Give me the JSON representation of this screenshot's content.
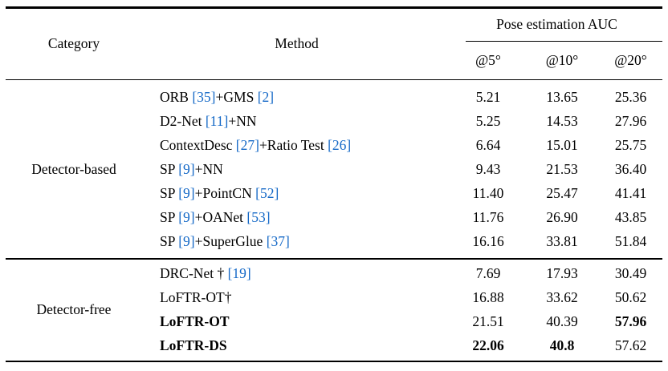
{
  "table": {
    "citation_color": "#1569c7",
    "rule_color": "#000000",
    "header": {
      "category": "Category",
      "method": "Method",
      "group": "Pose estimation AUC",
      "subcols": [
        "@5°",
        "@10°",
        "@20°"
      ]
    },
    "sections": [
      {
        "category": "Detector-based",
        "rows": [
          {
            "parts": [
              {
                "t": "ORB ",
                "c": false
              },
              {
                "t": "[35]",
                "c": true
              },
              {
                "t": "+GMS ",
                "c": false
              },
              {
                "t": "[2]",
                "c": true
              }
            ],
            "vals": [
              {
                "t": "5.21",
                "b": false
              },
              {
                "t": "13.65",
                "b": false
              },
              {
                "t": "25.36",
                "b": false
              }
            ]
          },
          {
            "parts": [
              {
                "t": "D2-Net ",
                "c": false
              },
              {
                "t": "[11]",
                "c": true
              },
              {
                "t": "+NN",
                "c": false
              }
            ],
            "vals": [
              {
                "t": "5.25",
                "b": false
              },
              {
                "t": "14.53",
                "b": false
              },
              {
                "t": "27.96",
                "b": false
              }
            ]
          },
          {
            "parts": [
              {
                "t": "ContextDesc ",
                "c": false
              },
              {
                "t": "[27]",
                "c": true
              },
              {
                "t": "+Ratio Test ",
                "c": false
              },
              {
                "t": "[26]",
                "c": true
              }
            ],
            "vals": [
              {
                "t": "6.64",
                "b": false
              },
              {
                "t": "15.01",
                "b": false
              },
              {
                "t": "25.75",
                "b": false
              }
            ]
          },
          {
            "parts": [
              {
                "t": "SP ",
                "c": false
              },
              {
                "t": "[9]",
                "c": true
              },
              {
                "t": "+NN",
                "c": false
              }
            ],
            "vals": [
              {
                "t": "9.43",
                "b": false
              },
              {
                "t": "21.53",
                "b": false
              },
              {
                "t": "36.40",
                "b": false
              }
            ]
          },
          {
            "parts": [
              {
                "t": "SP ",
                "c": false
              },
              {
                "t": "[9]",
                "c": true
              },
              {
                "t": "+PointCN ",
                "c": false
              },
              {
                "t": "[52]",
                "c": true
              }
            ],
            "vals": [
              {
                "t": "11.40",
                "b": false
              },
              {
                "t": "25.47",
                "b": false
              },
              {
                "t": "41.41",
                "b": false
              }
            ]
          },
          {
            "parts": [
              {
                "t": "SP ",
                "c": false
              },
              {
                "t": "[9]",
                "c": true
              },
              {
                "t": "+OANet ",
                "c": false
              },
              {
                "t": "[53]",
                "c": true
              }
            ],
            "vals": [
              {
                "t": "11.76",
                "b": false
              },
              {
                "t": "26.90",
                "b": false
              },
              {
                "t": "43.85",
                "b": false
              }
            ]
          },
          {
            "parts": [
              {
                "t": "SP ",
                "c": false
              },
              {
                "t": "[9]",
                "c": true
              },
              {
                "t": "+SuperGlue ",
                "c": false
              },
              {
                "t": "[37]",
                "c": true
              }
            ],
            "vals": [
              {
                "t": "16.16",
                "b": false
              },
              {
                "t": "33.81",
                "b": false
              },
              {
                "t": "51.84",
                "b": false
              }
            ]
          }
        ]
      },
      {
        "category": "Detector-free",
        "rows": [
          {
            "parts": [
              {
                "t": "DRC-Net † ",
                "c": false
              },
              {
                "t": "[19]",
                "c": true
              }
            ],
            "vals": [
              {
                "t": "7.69",
                "b": false
              },
              {
                "t": "17.93",
                "b": false
              },
              {
                "t": "30.49",
                "b": false
              }
            ]
          },
          {
            "parts": [
              {
                "t": "LoFTR-OT†",
                "c": false
              }
            ],
            "vals": [
              {
                "t": "16.88",
                "b": false
              },
              {
                "t": "33.62",
                "b": false
              },
              {
                "t": "50.62",
                "b": false
              }
            ]
          },
          {
            "parts": [
              {
                "t": "LoFTR-OT",
                "c": false,
                "b": true
              }
            ],
            "vals": [
              {
                "t": "21.51",
                "b": false
              },
              {
                "t": "40.39",
                "b": false
              },
              {
                "t": "57.96",
                "b": true
              }
            ]
          },
          {
            "parts": [
              {
                "t": "LoFTR-DS",
                "c": false,
                "b": true
              }
            ],
            "vals": [
              {
                "t": "22.06",
                "b": true
              },
              {
                "t": "40.8",
                "b": true
              },
              {
                "t": "57.62",
                "b": false
              }
            ]
          }
        ]
      }
    ]
  }
}
